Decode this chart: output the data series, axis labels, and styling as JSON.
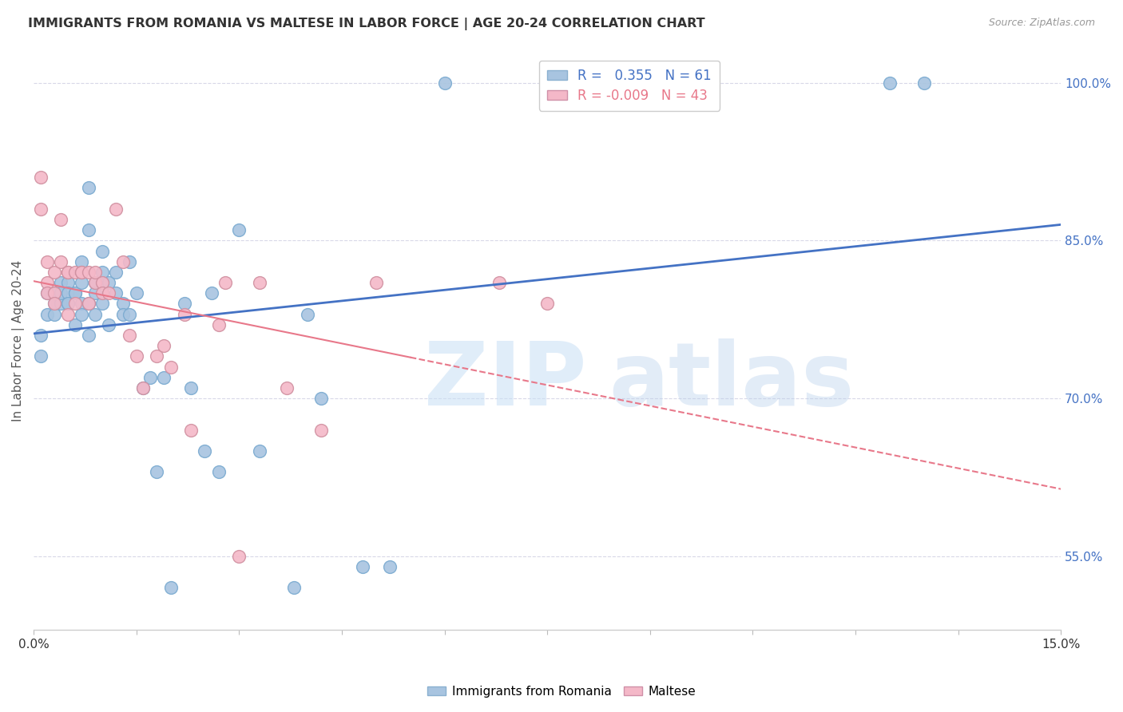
{
  "title": "IMMIGRANTS FROM ROMANIA VS MALTESE IN LABOR FORCE | AGE 20-24 CORRELATION CHART",
  "source": "Source: ZipAtlas.com",
  "ylabel": "In Labor Force | Age 20-24",
  "xlim": [
    0.0,
    0.15
  ],
  "ylim": [
    0.48,
    1.03
  ],
  "yticks_right": [
    0.55,
    0.7,
    0.85,
    1.0
  ],
  "ytick_right_labels": [
    "55.0%",
    "70.0%",
    "85.0%",
    "100.0%"
  ],
  "romania_R": 0.355,
  "romania_N": 61,
  "maltese_R": -0.009,
  "maltese_N": 43,
  "romania_color": "#a8c4e0",
  "maltese_color": "#f4b8c8",
  "romania_line_color": "#4472c4",
  "maltese_line_color": "#e8788a",
  "maltese_line_solid_end": 0.055,
  "background_color": "#ffffff",
  "grid_color": "#d8d8e8",
  "romania_x": [
    0.001,
    0.001,
    0.002,
    0.002,
    0.003,
    0.003,
    0.003,
    0.004,
    0.004,
    0.004,
    0.005,
    0.005,
    0.005,
    0.005,
    0.006,
    0.006,
    0.006,
    0.007,
    0.007,
    0.007,
    0.007,
    0.008,
    0.008,
    0.008,
    0.008,
    0.009,
    0.009,
    0.009,
    0.01,
    0.01,
    0.01,
    0.01,
    0.011,
    0.011,
    0.012,
    0.012,
    0.013,
    0.013,
    0.014,
    0.014,
    0.015,
    0.016,
    0.017,
    0.018,
    0.019,
    0.02,
    0.022,
    0.023,
    0.025,
    0.026,
    0.027,
    0.03,
    0.033,
    0.038,
    0.04,
    0.042,
    0.048,
    0.052,
    0.06,
    0.125,
    0.13
  ],
  "romania_y": [
    0.76,
    0.74,
    0.78,
    0.8,
    0.79,
    0.78,
    0.8,
    0.79,
    0.81,
    0.8,
    0.79,
    0.81,
    0.8,
    0.79,
    0.8,
    0.77,
    0.8,
    0.79,
    0.81,
    0.83,
    0.78,
    0.9,
    0.79,
    0.86,
    0.76,
    0.81,
    0.8,
    0.78,
    0.81,
    0.79,
    0.84,
    0.82,
    0.81,
    0.77,
    0.8,
    0.82,
    0.79,
    0.78,
    0.83,
    0.78,
    0.8,
    0.71,
    0.72,
    0.63,
    0.72,
    0.52,
    0.79,
    0.71,
    0.65,
    0.8,
    0.63,
    0.86,
    0.65,
    0.52,
    0.78,
    0.7,
    0.54,
    0.54,
    1.0,
    1.0,
    1.0
  ],
  "maltese_x": [
    0.001,
    0.001,
    0.002,
    0.002,
    0.002,
    0.003,
    0.003,
    0.003,
    0.004,
    0.004,
    0.005,
    0.005,
    0.005,
    0.006,
    0.006,
    0.007,
    0.007,
    0.008,
    0.008,
    0.009,
    0.009,
    0.01,
    0.01,
    0.011,
    0.012,
    0.013,
    0.014,
    0.015,
    0.016,
    0.018,
    0.019,
    0.02,
    0.022,
    0.023,
    0.027,
    0.028,
    0.03,
    0.033,
    0.037,
    0.042,
    0.05,
    0.068,
    0.075
  ],
  "maltese_y": [
    0.91,
    0.88,
    0.83,
    0.81,
    0.8,
    0.82,
    0.8,
    0.79,
    0.87,
    0.83,
    0.82,
    0.78,
    0.82,
    0.82,
    0.79,
    0.82,
    0.82,
    0.82,
    0.79,
    0.81,
    0.82,
    0.81,
    0.8,
    0.8,
    0.88,
    0.83,
    0.76,
    0.74,
    0.71,
    0.74,
    0.75,
    0.73,
    0.78,
    0.67,
    0.77,
    0.81,
    0.55,
    0.81,
    0.71,
    0.67,
    0.81,
    0.81,
    0.79
  ]
}
